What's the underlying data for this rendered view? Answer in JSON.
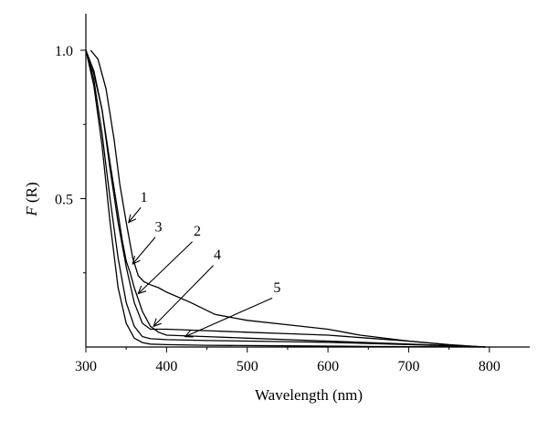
{
  "chart_data": {
    "type": "line",
    "title": "",
    "xlabel": "Wavelength (nm)",
    "ylabel_italic": "F",
    "ylabel_rest": " (R)",
    "xlim": [
      300,
      850
    ],
    "ylim": [
      0,
      1.0
    ],
    "xticks": [
      300,
      400,
      500,
      600,
      700,
      800
    ],
    "xtick_labels": [
      "300",
      "400",
      "500",
      "600",
      "700",
      "800"
    ],
    "yticks": [
      0.5,
      1.0
    ],
    "ytick_labels": [
      "0.5",
      "1.0"
    ],
    "grid": false,
    "legend": "none",
    "series": [
      {
        "name": "1",
        "x": [
          306,
          315,
          325,
          335,
          342,
          350,
          358,
          365,
          372,
          380,
          390,
          400,
          430,
          460,
          500,
          550,
          600,
          640,
          700,
          760,
          795
        ],
        "y": [
          1.0,
          0.97,
          0.87,
          0.7,
          0.55,
          0.42,
          0.3,
          0.24,
          0.22,
          0.21,
          0.2,
          0.185,
          0.15,
          0.11,
          0.09,
          0.075,
          0.06,
          0.04,
          0.02,
          0.005,
          0.0
        ]
      },
      {
        "name": "2",
        "x": [
          300,
          310,
          320,
          330,
          340,
          350,
          360,
          370,
          380,
          390,
          400,
          450,
          500,
          550,
          600,
          650,
          700,
          750,
          795
        ],
        "y": [
          1.0,
          0.93,
          0.8,
          0.6,
          0.42,
          0.27,
          0.15,
          0.08,
          0.06,
          0.06,
          0.06,
          0.055,
          0.05,
          0.045,
          0.04,
          0.03,
          0.02,
          0.008,
          0.0
        ]
      },
      {
        "name": "3",
        "x": [
          300,
          310,
          320,
          330,
          340,
          345,
          350,
          355,
          360,
          370,
          380,
          390,
          400,
          450,
          500,
          550,
          600,
          650,
          700,
          750,
          795
        ],
        "y": [
          1.0,
          0.92,
          0.8,
          0.62,
          0.45,
          0.36,
          0.29,
          0.25,
          0.2,
          0.12,
          0.07,
          0.05,
          0.04,
          0.035,
          0.03,
          0.025,
          0.02,
          0.015,
          0.01,
          0.005,
          0.0
        ]
      },
      {
        "name": "4",
        "x": [
          300,
          310,
          320,
          330,
          340,
          350,
          360,
          370,
          380,
          400,
          450,
          500,
          550,
          600,
          650,
          700,
          750,
          795
        ],
        "y": [
          1.0,
          0.9,
          0.72,
          0.5,
          0.3,
          0.15,
          0.07,
          0.035,
          0.028,
          0.025,
          0.022,
          0.02,
          0.018,
          0.016,
          0.012,
          0.008,
          0.004,
          0.0
        ]
      },
      {
        "name": "5",
        "x": [
          300,
          310,
          320,
          330,
          340,
          350,
          360,
          370,
          380,
          400,
          450,
          500,
          550,
          600,
          650,
          700,
          750,
          795
        ],
        "y": [
          1.0,
          0.88,
          0.68,
          0.42,
          0.2,
          0.08,
          0.03,
          0.015,
          0.01,
          0.008,
          0.006,
          0.005,
          0.004,
          0.003,
          0.002,
          0.001,
          0.0005,
          0.0
        ]
      }
    ],
    "annotations": [
      {
        "label": "1",
        "text_x": 372,
        "text_y": 0.49,
        "from_x": 368,
        "from_y": 0.47,
        "to_x": 353,
        "to_y": 0.42
      },
      {
        "label": "3",
        "text_x": 390,
        "text_y": 0.39,
        "from_x": 386,
        "from_y": 0.37,
        "to_x": 358,
        "to_y": 0.28
      },
      {
        "label": "2",
        "text_x": 438,
        "text_y": 0.375,
        "from_x": 432,
        "from_y": 0.355,
        "to_x": 365,
        "to_y": 0.18
      },
      {
        "label": "4",
        "text_x": 463,
        "text_y": 0.295,
        "from_x": 458,
        "from_y": 0.275,
        "to_x": 384,
        "to_y": 0.07
      },
      {
        "label": "5",
        "text_x": 537,
        "text_y": 0.185,
        "from_x": 531,
        "from_y": 0.165,
        "to_x": 423,
        "to_y": 0.035
      }
    ]
  }
}
